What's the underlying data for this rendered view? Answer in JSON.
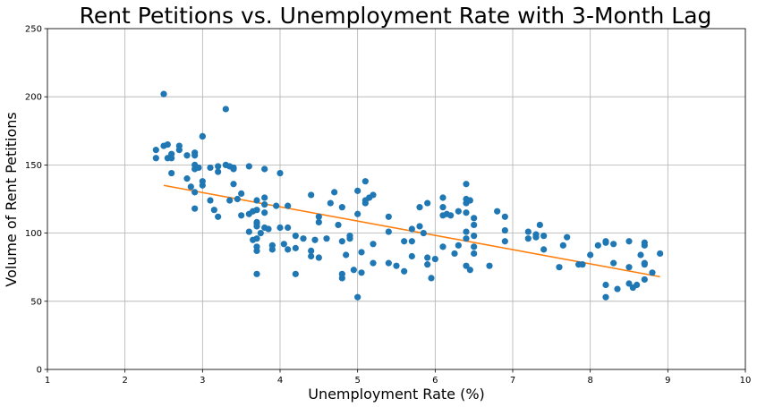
{
  "chart_data": {
    "type": "scatter",
    "title": "Rent Petitions vs. Unemployment Rate with 3-Month Lag",
    "xlabel": "Unemployment Rate (%)",
    "ylabel": "Volume of Rent Petitions",
    "xlim": [
      1,
      10
    ],
    "ylim": [
      0,
      250
    ],
    "xticks": [
      1,
      2,
      3,
      4,
      5,
      6,
      7,
      8,
      9,
      10
    ],
    "yticks": [
      0,
      50,
      100,
      150,
      200,
      250
    ],
    "grid": true,
    "colors": {
      "points": "#1f77b4",
      "trend": "#ff7f0e",
      "grid": "#b0b0b0"
    },
    "series": [
      {
        "type": "scatter",
        "points": [
          [
            2.4,
            161
          ],
          [
            2.4,
            155
          ],
          [
            2.5,
            202
          ],
          [
            2.5,
            164
          ],
          [
            2.55,
            165
          ],
          [
            2.55,
            155
          ],
          [
            2.6,
            158
          ],
          [
            2.6,
            155
          ],
          [
            2.6,
            144
          ],
          [
            2.7,
            164
          ],
          [
            2.7,
            161
          ],
          [
            2.8,
            157
          ],
          [
            2.8,
            140
          ],
          [
            2.85,
            134
          ],
          [
            2.9,
            150
          ],
          [
            2.9,
            147
          ],
          [
            2.9,
            159
          ],
          [
            2.9,
            157
          ],
          [
            2.9,
            130
          ],
          [
            2.9,
            118
          ],
          [
            2.95,
            148
          ],
          [
            3.0,
            171
          ],
          [
            3.0,
            171
          ],
          [
            3.0,
            138
          ],
          [
            3.0,
            135
          ],
          [
            3.1,
            148
          ],
          [
            3.1,
            124
          ],
          [
            3.15,
            117
          ],
          [
            3.2,
            149
          ],
          [
            3.2,
            145
          ],
          [
            3.2,
            112
          ],
          [
            3.3,
            191
          ],
          [
            3.3,
            150
          ],
          [
            3.35,
            149
          ],
          [
            3.35,
            124
          ],
          [
            3.4,
            148
          ],
          [
            3.4,
            147
          ],
          [
            3.4,
            136
          ],
          [
            3.45,
            125
          ],
          [
            3.5,
            129
          ],
          [
            3.5,
            113
          ],
          [
            3.6,
            149
          ],
          [
            3.6,
            114
          ],
          [
            3.6,
            101
          ],
          [
            3.65,
            95
          ],
          [
            3.65,
            116
          ],
          [
            3.7,
            124
          ],
          [
            3.7,
            117
          ],
          [
            3.7,
            108
          ],
          [
            3.7,
            107
          ],
          [
            3.7,
            105
          ],
          [
            3.7,
            96
          ],
          [
            3.7,
            90
          ],
          [
            3.7,
            87
          ],
          [
            3.7,
            70
          ],
          [
            3.75,
            100
          ],
          [
            3.8,
            147
          ],
          [
            3.8,
            126
          ],
          [
            3.8,
            121
          ],
          [
            3.8,
            115
          ],
          [
            3.8,
            104
          ],
          [
            3.85,
            103
          ],
          [
            3.9,
            91
          ],
          [
            3.9,
            88
          ],
          [
            3.95,
            120
          ],
          [
            4.0,
            144
          ],
          [
            4.0,
            104
          ],
          [
            4.05,
            92
          ],
          [
            4.1,
            120
          ],
          [
            4.1,
            104
          ],
          [
            4.1,
            88
          ],
          [
            4.2,
            98
          ],
          [
            4.2,
            89
          ],
          [
            4.2,
            70
          ],
          [
            4.3,
            96
          ],
          [
            4.4,
            128
          ],
          [
            4.4,
            87
          ],
          [
            4.4,
            83
          ],
          [
            4.45,
            95
          ],
          [
            4.5,
            112
          ],
          [
            4.5,
            108
          ],
          [
            4.5,
            82
          ],
          [
            4.6,
            96
          ],
          [
            4.65,
            122
          ],
          [
            4.7,
            130
          ],
          [
            4.75,
            106
          ],
          [
            4.8,
            119
          ],
          [
            4.8,
            94
          ],
          [
            4.8,
            70
          ],
          [
            4.8,
            67
          ],
          [
            4.85,
            84
          ],
          [
            4.9,
            98
          ],
          [
            4.9,
            96
          ],
          [
            4.95,
            73
          ],
          [
            5.0,
            53
          ],
          [
            5.0,
            114
          ],
          [
            5.0,
            131
          ],
          [
            5.05,
            71
          ],
          [
            5.05,
            86
          ],
          [
            5.1,
            138
          ],
          [
            5.1,
            122
          ],
          [
            5.1,
            124
          ],
          [
            5.15,
            126
          ],
          [
            5.2,
            128
          ],
          [
            5.2,
            92
          ],
          [
            5.2,
            78
          ],
          [
            5.4,
            112
          ],
          [
            5.4,
            101
          ],
          [
            5.4,
            78
          ],
          [
            5.5,
            76
          ],
          [
            5.6,
            94
          ],
          [
            5.6,
            72
          ],
          [
            5.7,
            103
          ],
          [
            5.7,
            94
          ],
          [
            5.7,
            83
          ],
          [
            5.8,
            119
          ],
          [
            5.8,
            105
          ],
          [
            5.85,
            100
          ],
          [
            5.9,
            122
          ],
          [
            5.9,
            82
          ],
          [
            5.9,
            77
          ],
          [
            5.95,
            67
          ],
          [
            6.0,
            81
          ],
          [
            6.1,
            126
          ],
          [
            6.1,
            119
          ],
          [
            6.1,
            113
          ],
          [
            6.1,
            90
          ],
          [
            6.15,
            114
          ],
          [
            6.2,
            113
          ],
          [
            6.25,
            85
          ],
          [
            6.3,
            116
          ],
          [
            6.3,
            91
          ],
          [
            6.4,
            136
          ],
          [
            6.4,
            125
          ],
          [
            6.4,
            122
          ],
          [
            6.4,
            115
          ],
          [
            6.4,
            101
          ],
          [
            6.4,
            96
          ],
          [
            6.4,
            76
          ],
          [
            6.45,
            73
          ],
          [
            6.45,
            124
          ],
          [
            6.5,
            111
          ],
          [
            6.5,
            106
          ],
          [
            6.5,
            98
          ],
          [
            6.5,
            90
          ],
          [
            6.5,
            85
          ],
          [
            6.7,
            76
          ],
          [
            6.8,
            116
          ],
          [
            6.9,
            112
          ],
          [
            6.9,
            102
          ],
          [
            6.9,
            94
          ],
          [
            7.2,
            101
          ],
          [
            7.2,
            96
          ],
          [
            7.3,
            99
          ],
          [
            7.3,
            97
          ],
          [
            7.35,
            106
          ],
          [
            7.4,
            98
          ],
          [
            7.4,
            88
          ],
          [
            7.6,
            75
          ],
          [
            7.65,
            91
          ],
          [
            7.7,
            97
          ],
          [
            7.85,
            77
          ],
          [
            7.9,
            77
          ],
          [
            8.0,
            84
          ],
          [
            8.1,
            91
          ],
          [
            8.2,
            94
          ],
          [
            8.2,
            93
          ],
          [
            8.2,
            62
          ],
          [
            8.2,
            53
          ],
          [
            8.3,
            92
          ],
          [
            8.3,
            78
          ],
          [
            8.35,
            59
          ],
          [
            8.5,
            94
          ],
          [
            8.5,
            75
          ],
          [
            8.5,
            63
          ],
          [
            8.55,
            60
          ],
          [
            8.6,
            62
          ],
          [
            8.65,
            84
          ],
          [
            8.7,
            93
          ],
          [
            8.7,
            91
          ],
          [
            8.7,
            78
          ],
          [
            8.7,
            77
          ],
          [
            8.7,
            66
          ],
          [
            8.8,
            71
          ],
          [
            8.9,
            85
          ]
        ]
      },
      {
        "type": "line",
        "x": [
          2.5,
          8.9
        ],
        "y": [
          135,
          68
        ]
      }
    ]
  }
}
